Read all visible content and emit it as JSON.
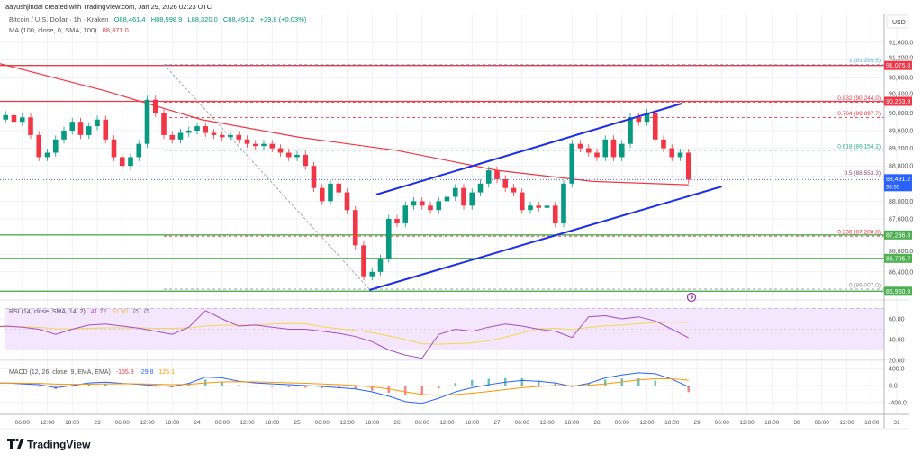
{
  "header": {
    "attribution": "aayushjindal created with TradingView.com, Jan 29, 2026 02:23 UTC"
  },
  "legend": {
    "symbol": "Bitcoin / U.S. Dollar · 1h · Kraken",
    "open": "O88,461.4",
    "high": "H88,598.9",
    "low": "L88,320.0",
    "close": "C88,491.2",
    "change": "+29.8 (+0.03%)",
    "ma_label": "MA (100, close, 0, SMA, 100)",
    "ma_value": "88,371.0"
  },
  "rsi_legend": {
    "label": "RSI (14, close, SMA, 14, 2)",
    "rsi": "41.72",
    "sma": "51.90",
    "extra1": "∅",
    "extra2": "∅"
  },
  "macd_legend": {
    "label": "MACD (12, 26, close, 9, EMA, EMA)",
    "hist": "-155.9",
    "macd": "-29.8",
    "signal": "126.1"
  },
  "price_axis": {
    "currency": "USD",
    "labels": [
      "91,600.0",
      "91,200.0",
      "90,800.0",
      "90,400.0",
      "90,000.0",
      "89,600.0",
      "89,200.0",
      "88,800.0",
      "88,000.0",
      "87,600.0",
      "86,800.0",
      "86,400.0"
    ],
    "values": [
      91600,
      91200,
      90800,
      90400,
      90000,
      89600,
      89200,
      88800,
      88000,
      87600,
      86800,
      86400
    ]
  },
  "rsi_axis": {
    "labels": [
      "60.00",
      "40.00",
      "20.00"
    ],
    "values": [
      60,
      40,
      20
    ]
  },
  "macd_axis": {
    "labels": [
      "400.0",
      "0.0",
      "-400.0"
    ],
    "values": [
      400,
      0,
      -400
    ]
  },
  "time_axis": {
    "first": "2026-01-22T06:00",
    "labels": [
      "06:00",
      "12:00",
      "18:00",
      "23",
      "06:00",
      "12:00",
      "18:00",
      "24",
      "06:00",
      "12:00",
      "18:00",
      "25",
      "06:00",
      "12:00",
      "18:00",
      "26",
      "06:00",
      "12:00",
      "18:00",
      "27",
      "06:00",
      "12:00",
      "18:00",
      "28",
      "06:00",
      "12:00",
      "18:00",
      "29",
      "06:00",
      "12:00",
      "18:00",
      "30",
      "06:00",
      "12:00",
      "18:00",
      "31"
    ]
  },
  "price_tags": [
    {
      "text": "91,075.8",
      "value": 91075.8,
      "color": "#f23645"
    },
    {
      "text": "90,263.9",
      "value": 90263.9,
      "color": "#f23645"
    },
    {
      "text": "87,236.8",
      "value": 87236.8,
      "color": "#4caf50"
    },
    {
      "text": "86,705.7",
      "value": 86705.7,
      "color": "#4caf50"
    },
    {
      "text": "85,960.9",
      "value": 85960.9,
      "color": "#4caf50"
    }
  ],
  "current_price": {
    "text": "88,491.2",
    "countdown": "36:55",
    "value": 88491.2,
    "color": "#2962ff"
  },
  "colors": {
    "up": "#089981",
    "down": "#f23645",
    "ma": "#f23645",
    "channel": "#1e2ee6",
    "rsi": "#a64dc8",
    "rsi_sma": "#f5d84a",
    "macd": "#2962ff",
    "signal": "#ff9800",
    "rsi_band": "#f3e6fd"
  },
  "chart_data": [
    {
      "type": "candlestick",
      "title": "Bitcoin / U.S. Dollar · 1h · Kraken",
      "ylim": [
        85800,
        91800
      ],
      "candles": {
        "start": "2026-01-21T22:00",
        "step_hours": 2,
        "first_open": 89950,
        "closes": [
          89900,
          89850,
          89950,
          89800,
          89900,
          89500,
          89000,
          89100,
          89400,
          89600,
          89800,
          89500,
          89700,
          89850,
          89400,
          89000,
          88800,
          89000,
          89300,
          90300,
          90000,
          89500,
          89400,
          89550,
          89600,
          89700,
          89550,
          89500,
          89450,
          89500,
          89400,
          89300,
          89250,
          89300,
          89200,
          89100,
          89000,
          89050,
          88800,
          88300,
          88000,
          88400,
          88200,
          87800,
          87000,
          86300,
          86400,
          86700,
          87600,
          87500,
          87900,
          88000,
          87900,
          87800,
          88000,
          88100,
          88300,
          87900,
          88200,
          88400,
          88700,
          88500,
          88300,
          88200,
          87800,
          87900,
          87850,
          87900,
          87500,
          88400,
          89300,
          89200,
          89100,
          89000,
          89400,
          89000,
          89300,
          89900,
          89800,
          90000,
          89400,
          89200,
          89000,
          89100,
          88491.2
        ]
      },
      "moving_average": [
        {
          "t": "2026-01-22T00:00",
          "v": 91130
        },
        {
          "t": "2026-01-23T02:00",
          "v": 90500
        },
        {
          "t": "2026-01-24T01:00",
          "v": 89850
        },
        {
          "t": "2026-01-25T00:30",
          "v": 89450
        },
        {
          "t": "2026-01-26T00:00",
          "v": 89150
        },
        {
          "t": "2026-01-27T00:00",
          "v": 88700
        },
        {
          "t": "2026-01-27T23:00",
          "v": 88450
        },
        {
          "t": "2026-01-28T22:00",
          "v": 88371
        }
      ],
      "horizontal_lines": [
        91075.8,
        90263.9,
        87236.8,
        86705.7,
        85960.9
      ],
      "fib": {
        "from": {
          "t": "2026-01-23T16:00",
          "v": 91099.5
        },
        "to": {
          "t": "2026-01-25T17:20",
          "v": 86007.0
        },
        "levels": [
          {
            "label": "1 (91,099.5)",
            "value": 91099.5,
            "color": "#5aaee8"
          },
          {
            "label": "0.832 (90,244.0)",
            "value": 90244.0,
            "color": "#f23645"
          },
          {
            "label": "0.764 (89,897.7)",
            "value": 89897.7,
            "color": "#f23645"
          },
          {
            "label": "0.618 (89,154.2)",
            "value": 89154.2,
            "color": "#22ab94"
          },
          {
            "label": "0.5 (88,553.3)",
            "value": 88553.3,
            "color": "#8d4a6a"
          },
          {
            "label": "0.236 (87,208.8)",
            "value": 87208.8,
            "color": "#f23645"
          },
          {
            "label": "0 (86,007.0)",
            "value": 86007.0,
            "color": "#909090"
          }
        ]
      },
      "channel": {
        "upper": [
          {
            "t": "2026-01-25T19:00",
            "v": 88151
          },
          {
            "t": "2026-01-28T20:20",
            "v": 90212
          }
        ],
        "lower": [
          {
            "t": "2026-01-25T17:20",
            "v": 85988
          },
          {
            "t": "2026-01-29T06:00",
            "v": 88335
          }
        ]
      }
    },
    {
      "type": "line",
      "title": "RSI (14, close, SMA, 14, 2)",
      "start": "2026-01-21T22:00",
      "step_hours": 4,
      "ylim": [
        15,
        75
      ],
      "bands": [
        30,
        70
      ],
      "rsi": [
        52,
        53,
        52,
        50,
        45,
        50,
        54,
        55,
        53,
        51,
        48,
        45,
        52,
        68,
        60,
        53,
        54,
        52,
        50,
        50,
        48,
        46,
        43,
        38,
        30,
        25,
        22,
        45,
        50,
        48,
        52,
        55,
        53,
        50,
        48,
        42,
        62,
        63,
        60,
        62,
        58,
        50,
        41.72
      ]
    },
    {
      "type": "line",
      "title": "MACD (12, 26, close, 9, EMA, EMA)",
      "start": "2026-01-21T22:00",
      "step_hours": 4,
      "ylim": [
        -550,
        550
      ],
      "macd": [
        50,
        60,
        40,
        20,
        -50,
        0,
        60,
        80,
        50,
        30,
        0,
        -20,
        50,
        200,
        180,
        100,
        60,
        40,
        20,
        0,
        -20,
        -50,
        -80,
        -150,
        -250,
        -380,
        -420,
        -300,
        -150,
        -50,
        20,
        80,
        120,
        100,
        60,
        -20,
        50,
        180,
        250,
        300,
        280,
        150,
        -29.8
      ],
      "signal": [
        60,
        58,
        55,
        50,
        35,
        28,
        32,
        40,
        42,
        40,
        32,
        22,
        28,
        60,
        85,
        90,
        85,
        76,
        65,
        52,
        38,
        20,
        0,
        -30,
        -80,
        -150,
        -210,
        -230,
        -210,
        -180,
        -140,
        -95,
        -50,
        -20,
        0,
        -5,
        5,
        40,
        85,
        130,
        160,
        160,
        126.1
      ]
    }
  ],
  "footer": {
    "brand": "TradingView"
  }
}
